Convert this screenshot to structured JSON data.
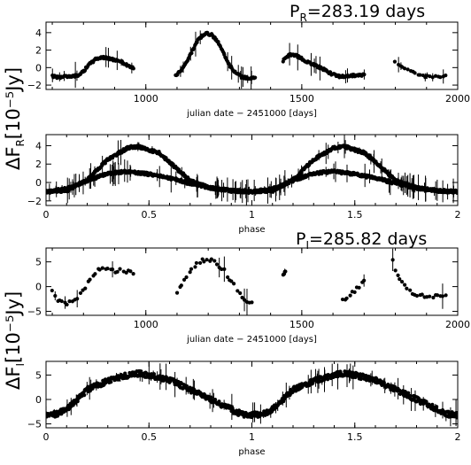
{
  "figure": {
    "ylabel_R": "ΔF",
    "ylabel_R_sub": "R",
    "ylabel_R_units": "[10⁻⁵Jy]",
    "ylabel_I": "ΔF",
    "ylabel_I_sub": "I",
    "ylabel_I_units": "[10⁻⁵Jy]",
    "period_R_prefix": "P",
    "period_R_sub": "R",
    "period_R_value": "=283.19 days",
    "period_I_prefix": "P",
    "period_I_sub": "I",
    "period_I_value": "=285.82 days"
  },
  "chart_data": [
    {
      "type": "scatter",
      "panel": "R light curve",
      "xlabel": "julian date − 2451000 [days]",
      "xlim": [
        680,
        2000
      ],
      "ylim": [
        -2.5,
        5.2
      ],
      "xticks": [
        "1000",
        "1500",
        "2000"
      ],
      "yticks": [
        "−2",
        "0",
        "2",
        "4"
      ],
      "xtick_values": [
        1000,
        1500,
        2000
      ],
      "ytick_values": [
        -2,
        0,
        2,
        4
      ],
      "segments": [
        {
          "x_range": [
            700,
            960
          ],
          "points": [
            [
              700,
              -1.0
            ],
            [
              720,
              -1.1
            ],
            [
              740,
              -1.0
            ],
            [
              760,
              -1.1
            ],
            [
              780,
              -0.9
            ],
            [
              800,
              -0.4
            ],
            [
              820,
              0.4
            ],
            [
              840,
              1.0
            ],
            [
              860,
              1.2
            ],
            [
              880,
              1.0
            ],
            [
              900,
              0.9
            ],
            [
              920,
              0.7
            ],
            [
              940,
              0.3
            ],
            [
              960,
              0.0
            ]
          ]
        },
        {
          "x_range": [
            1095,
            1350
          ],
          "points": [
            [
              1095,
              -1.0
            ],
            [
              1110,
              -0.4
            ],
            [
              1130,
              0.6
            ],
            [
              1150,
              2.0
            ],
            [
              1170,
              3.3
            ],
            [
              1190,
              3.9
            ],
            [
              1210,
              3.8
            ],
            [
              1230,
              3.0
            ],
            [
              1250,
              1.6
            ],
            [
              1270,
              0.2
            ],
            [
              1290,
              -0.7
            ],
            [
              1310,
              -1.1
            ],
            [
              1330,
              -1.2
            ],
            [
              1350,
              -1.2
            ]
          ]
        },
        {
          "x_range": [
            1440,
            1710
          ],
          "points": [
            [
              1440,
              0.8
            ],
            [
              1460,
              1.5
            ],
            [
              1480,
              1.4
            ],
            [
              1500,
              1.0
            ],
            [
              1520,
              0.6
            ],
            [
              1540,
              0.3
            ],
            [
              1560,
              0.0
            ],
            [
              1580,
              -0.4
            ],
            [
              1600,
              -0.8
            ],
            [
              1620,
              -1.0
            ],
            [
              1640,
              -1.0
            ],
            [
              1660,
              -0.9
            ],
            [
              1680,
              -0.9
            ],
            [
              1700,
              -0.8
            ]
          ]
        },
        {
          "x_range": [
            1800,
            1960
          ],
          "points": [
            [
              1800,
              0.6
            ],
            [
              1820,
              0.2
            ],
            [
              1840,
              -0.2
            ],
            [
              1860,
              -0.6
            ],
            [
              1880,
              -0.9
            ],
            [
              1900,
              -1.0
            ],
            [
              1920,
              -1.1
            ],
            [
              1940,
              -1.0
            ],
            [
              1960,
              -1.0
            ]
          ]
        }
      ]
    },
    {
      "type": "scatter",
      "panel": "R folded",
      "xlabel": "phase",
      "xlim": [
        0,
        2
      ],
      "ylim": [
        -2.5,
        5.2
      ],
      "xticks": [
        "0",
        "0.5",
        "1",
        "1.5",
        "2"
      ],
      "yticks": [
        "−2",
        "0",
        "2",
        "4"
      ],
      "xtick_values": [
        0,
        0.5,
        1,
        1.5,
        2
      ],
      "ytick_values": [
        -2,
        0,
        2,
        4
      ],
      "series": [
        {
          "name": "",
          "points": [
            [
              0.0,
              -1.0
            ],
            [
              0.1,
              -0.9
            ],
            [
              0.2,
              0.3
            ],
            [
              0.3,
              2.5
            ],
            [
              0.4,
              3.8
            ],
            [
              0.45,
              3.9
            ],
            [
              0.55,
              3.2
            ],
            [
              0.62,
              1.8
            ],
            [
              0.7,
              0.2
            ],
            [
              0.8,
              -0.6
            ],
            [
              0.9,
              -0.9
            ],
            [
              1.0,
              -1.0
            ],
            [
              1.1,
              -0.9
            ],
            [
              1.2,
              0.3
            ],
            [
              1.3,
              2.5
            ],
            [
              1.4,
              3.8
            ],
            [
              1.45,
              3.9
            ],
            [
              1.55,
              3.2
            ],
            [
              1.62,
              1.8
            ],
            [
              1.7,
              0.2
            ],
            [
              1.8,
              -0.6
            ],
            [
              1.9,
              -0.9
            ],
            [
              2.0,
              -1.0
            ]
          ]
        },
        {
          "name": "",
          "points": [
            [
              0.0,
              -1.0
            ],
            [
              0.1,
              -0.7
            ],
            [
              0.2,
              0.2
            ],
            [
              0.3,
              1.0
            ],
            [
              0.4,
              1.2
            ],
            [
              0.5,
              0.9
            ],
            [
              0.6,
              0.5
            ],
            [
              0.7,
              -0.1
            ],
            [
              0.8,
              -0.6
            ],
            [
              0.9,
              -0.9
            ],
            [
              1.0,
              -1.0
            ],
            [
              1.1,
              -0.7
            ],
            [
              1.2,
              0.2
            ],
            [
              1.3,
              1.0
            ],
            [
              1.4,
              1.2
            ],
            [
              1.5,
              0.9
            ],
            [
              1.6,
              0.5
            ],
            [
              1.7,
              -0.1
            ],
            [
              1.8,
              -0.6
            ],
            [
              1.9,
              -0.9
            ],
            [
              2.0,
              -1.0
            ]
          ]
        }
      ]
    },
    {
      "type": "scatter",
      "panel": "I light curve",
      "xlabel": "julian date − 2451000 [days]",
      "xlim": [
        680,
        2000
      ],
      "ylim": [
        -5.8,
        7.8
      ],
      "xticks": [
        "1000",
        "1500",
        "2000"
      ],
      "yticks": [
        "−5",
        "0",
        "5"
      ],
      "xtick_values": [
        1000,
        1500,
        2000
      ],
      "ytick_values": [
        -5,
        0,
        5
      ],
      "segments": [
        {
          "x_range": [
            700,
            960
          ],
          "points": [
            [
              700,
              -1.0
            ],
            [
              720,
              -3.0
            ],
            [
              740,
              -3.5
            ],
            [
              760,
              -3.2
            ],
            [
              780,
              -2.5
            ],
            [
              800,
              -0.8
            ],
            [
              820,
              1.2
            ],
            [
              840,
              3.0
            ],
            [
              860,
              3.8
            ],
            [
              880,
              3.5
            ],
            [
              900,
              3.2
            ],
            [
              920,
              3.4
            ],
            [
              940,
              3.0
            ],
            [
              960,
              2.8
            ]
          ]
        },
        {
          "x_range": [
            1100,
            1340
          ],
          "points": [
            [
              1100,
              -1.5
            ],
            [
              1120,
              1.0
            ],
            [
              1140,
              3.0
            ],
            [
              1160,
              4.5
            ],
            [
              1180,
              5.2
            ],
            [
              1200,
              5.5
            ],
            [
              1220,
              5.0
            ],
            [
              1240,
              4.0
            ],
            [
              1260,
              2.5
            ],
            [
              1280,
              0.5
            ],
            [
              1300,
              -1.5
            ],
            [
              1320,
              -3.0
            ],
            [
              1340,
              -3.5
            ]
          ]
        },
        {
          "x_range": [
            1440,
            1450
          ],
          "points": [
            [
              1440,
              2.5
            ],
            [
              1448,
              2.8
            ]
          ]
        },
        {
          "x_range": [
            1630,
            1700
          ],
          "points": [
            [
              1630,
              -2.5
            ],
            [
              1650,
              -2.0
            ],
            [
              1670,
              -1.0
            ],
            [
              1690,
              0.5
            ],
            [
              1700,
              1.5
            ]
          ]
        },
        {
          "x_range": [
            1790,
            1960
          ],
          "points": [
            [
              1790,
              5.5
            ],
            [
              1810,
              1.8
            ],
            [
              1830,
              0.0
            ],
            [
              1850,
              -1.0
            ],
            [
              1870,
              -1.5
            ],
            [
              1890,
              -1.8
            ],
            [
              1910,
              -2.0
            ],
            [
              1940,
              -2.0
            ],
            [
              1960,
              -1.8
            ]
          ]
        }
      ]
    },
    {
      "type": "scatter",
      "panel": "I folded",
      "xlabel": "phase",
      "xlim": [
        0,
        2
      ],
      "ylim": [
        -5.8,
        7.8
      ],
      "xticks": [
        "0",
        "0.5",
        "1",
        "1.5",
        "2"
      ],
      "yticks": [
        "−5",
        "0",
        "5"
      ],
      "xtick_values": [
        0,
        0.5,
        1,
        1.5,
        2
      ],
      "ytick_values": [
        -5,
        0,
        5
      ],
      "series": [
        {
          "name": "",
          "points": [
            [
              0.0,
              -3.0
            ],
            [
              0.05,
              -3.0
            ],
            [
              0.1,
              -2.0
            ],
            [
              0.15,
              0.0
            ],
            [
              0.2,
              2.0
            ],
            [
              0.3,
              3.8
            ],
            [
              0.4,
              5.0
            ],
            [
              0.45,
              5.3
            ],
            [
              0.5,
              5.0
            ],
            [
              0.6,
              4.0
            ],
            [
              0.7,
              2.0
            ],
            [
              0.8,
              0.0
            ],
            [
              0.9,
              -2.0
            ],
            [
              0.95,
              -3.0
            ],
            [
              1.0,
              -3.2
            ],
            [
              1.05,
              -3.0
            ],
            [
              1.1,
              -2.0
            ],
            [
              1.15,
              0.0
            ],
            [
              1.2,
              2.0
            ],
            [
              1.3,
              3.8
            ],
            [
              1.4,
              5.0
            ],
            [
              1.45,
              5.3
            ],
            [
              1.5,
              5.0
            ],
            [
              1.6,
              4.0
            ],
            [
              1.7,
              2.0
            ],
            [
              1.8,
              0.0
            ],
            [
              1.9,
              -2.0
            ],
            [
              1.95,
              -3.0
            ],
            [
              2.0,
              -3.2
            ]
          ]
        }
      ]
    }
  ]
}
